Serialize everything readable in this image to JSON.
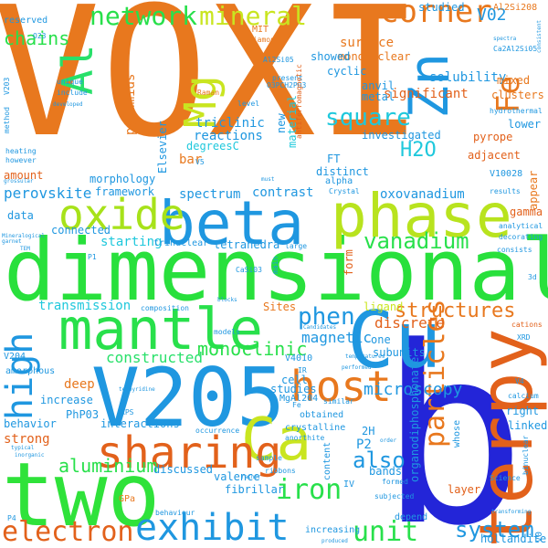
{
  "words": [
    {
      "text": "VOXI",
      "color": "#e8781e",
      "orientation": "horizontal"
    },
    {
      "text": "dimensional",
      "color": "#28e03c",
      "orientation": "horizontal"
    },
    {
      "text": "b",
      "color": "#2325d8",
      "orientation": "horizontal"
    },
    {
      "text": "terpy",
      "color": "#e2611b",
      "orientation": "vertical"
    },
    {
      "text": "V205",
      "color": "#1f97e0",
      "orientation": "horizontal"
    },
    {
      "text": "two",
      "color": "#2fe23a",
      "orientation": "horizontal"
    },
    {
      "text": "Cu",
      "color": "#1f97e0",
      "orientation": "horizontal"
    },
    {
      "text": "beta",
      "color": "#1f97e0",
      "orientation": "horizontal"
    },
    {
      "text": "phase",
      "color": "#b8e31e",
      "orientation": "horizontal"
    },
    {
      "text": "mantle",
      "color": "#28e04b",
      "orientation": "horizontal"
    },
    {
      "text": "Ca",
      "color": "#c9e520",
      "orientation": "horizontal"
    },
    {
      "text": "oxide",
      "color": "#a7e21a",
      "orientation": "horizontal"
    },
    {
      "text": "sharing",
      "color": "#e2611b",
      "orientation": "horizontal"
    },
    {
      "text": "host",
      "color": "#e8781e",
      "orientation": "horizontal"
    },
    {
      "text": "exhibit",
      "color": "#1f97e0",
      "orientation": "horizontal"
    },
    {
      "text": "electron",
      "color": "#e2611b",
      "orientation": "horizontal"
    },
    {
      "text": "high",
      "color": "#1f97e0",
      "orientation": "vertical"
    },
    {
      "text": "Mg",
      "color": "#c9e520",
      "orientation": "vertical"
    },
    {
      "text": "Al",
      "color": "#28e06a",
      "orientation": "vertical"
    },
    {
      "text": "Zn",
      "color": "#1f97e0",
      "orientation": "vertical"
    },
    {
      "text": "network",
      "color": "#28e04b",
      "orientation": "horizontal"
    },
    {
      "text": "mineral",
      "color": "#c9e520",
      "orientation": "horizontal"
    },
    {
      "text": "corner",
      "color": "#e8781e",
      "orientation": "horizontal"
    },
    {
      "text": "square",
      "color": "#1fc8dc",
      "orientation": "horizontal"
    },
    {
      "text": "H2O",
      "color": "#1fc8dc",
      "orientation": "horizontal"
    },
    {
      "text": "vanadium",
      "color": "#28e04b",
      "orientation": "horizontal"
    },
    {
      "text": "structures",
      "color": "#e8781e",
      "orientation": "horizontal"
    },
    {
      "text": "particles",
      "color": "#e8781e",
      "orientation": "vertical"
    },
    {
      "text": "system",
      "color": "#1f97e0",
      "orientation": "horizontal"
    },
    {
      "text": "unit",
      "color": "#28e04b",
      "orientation": "horizontal"
    },
    {
      "text": "phen",
      "color": "#1f97e0",
      "orientation": "horizontal"
    },
    {
      "text": "iron",
      "color": "#28e04b",
      "orientation": "horizontal"
    },
    {
      "text": "Fe",
      "color": "#e8781e",
      "orientation": "vertical"
    },
    {
      "text": "aluminium",
      "color": "#28e04b",
      "orientation": "horizontal"
    },
    {
      "text": "monoclinic",
      "color": "#28e04b",
      "orientation": "horizontal"
    },
    {
      "text": "constructed",
      "color": "#28e06a",
      "orientation": "horizontal"
    },
    {
      "text": "transmission",
      "color": "#1fc8dc",
      "orientation": "horizontal"
    },
    {
      "text": "magnetic",
      "color": "#1f97e0",
      "orientation": "horizontal"
    },
    {
      "text": "microscopy",
      "color": "#1f97e0",
      "orientation": "horizontal"
    },
    {
      "text": "also",
      "color": "#1f97e0",
      "orientation": "horizontal"
    },
    {
      "text": "perovskite",
      "color": "#1f97e0",
      "orientation": "horizontal"
    },
    {
      "text": "V02",
      "color": "#1f97e0",
      "orientation": "horizontal"
    },
    {
      "text": "chains",
      "color": "#28e04b",
      "orientation": "horizontal"
    },
    {
      "text": "surface",
      "color": "#e8781e",
      "orientation": "horizontal"
    },
    {
      "text": "mononuclear",
      "color": "#e8781e",
      "orientation": "horizontal"
    },
    {
      "text": "solubility",
      "color": "#1f97e0",
      "orientation": "horizontal"
    },
    {
      "text": "investigated",
      "color": "#1f97e0",
      "orientation": "horizontal"
    },
    {
      "text": "significant",
      "color": "#e2611b",
      "orientation": "horizontal"
    },
    {
      "text": "pyramids",
      "color": "#e8781e",
      "orientation": "vertical"
    },
    {
      "text": "reactions",
      "color": "#1f97e0",
      "orientation": "horizontal"
    },
    {
      "text": "triclinic",
      "color": "#1f97e0",
      "orientation": "horizontal"
    },
    {
      "text": "degreesC",
      "color": "#1fc8dc",
      "orientation": "horizontal"
    },
    {
      "text": "morphology",
      "color": "#1f97e0",
      "orientation": "horizontal"
    },
    {
      "text": "framework",
      "color": "#1f97e0",
      "orientation": "horizontal"
    },
    {
      "text": "spectrum",
      "color": "#1f97e0",
      "orientation": "horizontal"
    },
    {
      "text": "contrast",
      "color": "#1f97e0",
      "orientation": "horizontal"
    },
    {
      "text": "oxovanadium",
      "color": "#1f97e0",
      "orientation": "horizontal"
    },
    {
      "text": "starting",
      "color": "#1fc8dc",
      "orientation": "horizontal"
    },
    {
      "text": "tetrahedra",
      "color": "#1f97e0",
      "orientation": "horizontal"
    },
    {
      "text": "trinuclear",
      "color": "#1f97e0",
      "orientation": "horizontal"
    },
    {
      "text": "distinct",
      "color": "#1f97e0",
      "orientation": "horizontal"
    },
    {
      "text": "alpha",
      "color": "#1f97e0",
      "orientation": "horizontal"
    },
    {
      "text": "pyrope",
      "color": "#e2611b",
      "orientation": "horizontal"
    },
    {
      "text": "adjacent",
      "color": "#e2611b",
      "orientation": "horizontal"
    },
    {
      "text": "lower",
      "color": "#1f97e0",
      "orientation": "horizontal"
    },
    {
      "text": "clusters",
      "color": "#e8781e",
      "orientation": "horizontal"
    },
    {
      "text": "mixed",
      "color": "#e8781e",
      "orientation": "horizontal"
    },
    {
      "text": "gamma",
      "color": "#e2611b",
      "orientation": "horizontal"
    },
    {
      "text": "appear",
      "color": "#e8781e",
      "orientation": "vertical"
    },
    {
      "text": "cyclic",
      "color": "#1f97e0",
      "orientation": "horizontal"
    },
    {
      "text": "showed",
      "color": "#1f97e0",
      "orientation": "horizontal"
    },
    {
      "text": "amount",
      "color": "#e2611b",
      "orientation": "horizontal"
    },
    {
      "text": "data",
      "color": "#1f97e0",
      "orientation": "horizontal"
    },
    {
      "text": "connected",
      "color": "#1f97e0",
      "orientation": "horizontal"
    },
    {
      "text": "Elsevier",
      "color": "#1f97e0",
      "orientation": "vertical"
    },
    {
      "text": "bar",
      "color": "#e8781e",
      "orientation": "horizontal"
    },
    {
      "text": "FT",
      "color": "#1f97e0",
      "orientation": "horizontal"
    },
    {
      "text": "new",
      "color": "#1f97e0",
      "orientation": "vertical"
    },
    {
      "text": "material",
      "color": "#1fc8dc",
      "orientation": "vertical"
    },
    {
      "text": "metal",
      "color": "#1f97e0",
      "orientation": "horizontal"
    },
    {
      "text": "anvil",
      "color": "#1f97e0",
      "orientation": "horizontal"
    },
    {
      "text": "V10028",
      "color": "#1f97e0",
      "orientation": "horizontal"
    },
    {
      "text": "Al2Si208",
      "color": "#e8781e",
      "orientation": "horizontal"
    },
    {
      "text": "Ca2Al2Si05",
      "color": "#1f97e0",
      "orientation": "horizontal"
    },
    {
      "text": "ligand",
      "color": "#c9e520",
      "orientation": "horizontal"
    },
    {
      "text": "discrete",
      "color": "#e2611b",
      "orientation": "horizontal"
    },
    {
      "text": "form",
      "color": "#e2611b",
      "orientation": "vertical"
    },
    {
      "text": "Sites",
      "color": "#e8781e",
      "orientation": "horizontal"
    },
    {
      "text": "V4010",
      "color": "#1f97e0",
      "orientation": "horizontal"
    },
    {
      "text": "one",
      "color": "#1f97e0",
      "orientation": "horizontal"
    },
    {
      "text": "subunits",
      "color": "#1f97e0",
      "orientation": "horizontal"
    },
    {
      "text": "organodiphosphonate",
      "color": "#1f97e0",
      "orientation": "vertical"
    },
    {
      "text": "V204",
      "color": "#1f97e0",
      "orientation": "horizontal"
    },
    {
      "text": "amorphous",
      "color": "#1f97e0",
      "orientation": "horizontal"
    },
    {
      "text": "deep",
      "color": "#e8781e",
      "orientation": "horizontal"
    },
    {
      "text": "increase",
      "color": "#1f97e0",
      "orientation": "horizontal"
    },
    {
      "text": "behavior",
      "color": "#1f97e0",
      "orientation": "horizontal"
    },
    {
      "text": "PhP03",
      "color": "#1f97e0",
      "orientation": "horizontal"
    },
    {
      "text": "interactions",
      "color": "#1f97e0",
      "orientation": "horizontal"
    },
    {
      "text": "strong",
      "color": "#e2611b",
      "orientation": "horizontal"
    },
    {
      "text": "cell",
      "color": "#1f97e0",
      "orientation": "horizontal"
    },
    {
      "text": "studies",
      "color": "#1f97e0",
      "orientation": "horizontal"
    },
    {
      "text": "MgAl204",
      "color": "#1f97e0",
      "orientation": "horizontal"
    },
    {
      "text": "obtained",
      "color": "#1f97e0",
      "orientation": "horizontal"
    },
    {
      "text": "crystalline",
      "color": "#1f97e0",
      "orientation": "horizontal"
    },
    {
      "text": "2H",
      "color": "#1f97e0",
      "orientation": "horizontal"
    },
    {
      "text": "P2",
      "color": "#1f97e0",
      "orientation": "horizontal"
    },
    {
      "text": "whose",
      "color": "#1f97e0",
      "orientation": "vertical"
    },
    {
      "text": "right",
      "color": "#1f97e0",
      "orientation": "horizontal"
    },
    {
      "text": "linked",
      "color": "#1f97e0",
      "orientation": "horizontal"
    },
    {
      "text": "bands",
      "color": "#1f97e0",
      "orientation": "horizontal"
    },
    {
      "text": "layer",
      "color": "#e2611b",
      "orientation": "horizontal"
    },
    {
      "text": "discussed",
      "color": "#1f97e0",
      "orientation": "horizontal"
    },
    {
      "text": "valence",
      "color": "#1f97e0",
      "orientation": "horizontal"
    },
    {
      "text": "fibrillar",
      "color": "#1f97e0",
      "orientation": "horizontal"
    },
    {
      "text": "content",
      "color": "#1f97e0",
      "orientation": "vertical"
    },
    {
      "text": "increasing",
      "color": "#1f97e0",
      "orientation": "horizontal"
    },
    {
      "text": "depend",
      "color": "#1f97e0",
      "orientation": "horizontal"
    },
    {
      "text": "hollandite",
      "color": "#1f97e0",
      "orientation": "horizontal"
    },
    {
      "text": "reserved",
      "color": "#1f97e0",
      "orientation": "horizontal"
    },
    {
      "text": "studied",
      "color": "#1f97e0",
      "orientation": "horizontal"
    },
    {
      "text": "MIT",
      "color": "#e8781e",
      "orientation": "horizontal"
    },
    {
      "text": "diamond",
      "color": "#e8781e",
      "orientation": "horizontal"
    },
    {
      "text": "present",
      "color": "#1f97e0",
      "orientation": "horizontal"
    },
    {
      "text": "Raman",
      "color": "#e8781e",
      "orientation": "horizontal"
    },
    {
      "text": "Al2Si05",
      "color": "#1f97e0",
      "orientation": "horizontal"
    },
    {
      "text": "hydrothermal",
      "color": "#1f97e0",
      "orientation": "horizontal"
    },
    {
      "text": "results",
      "color": "#1f97e0",
      "orientation": "horizontal"
    },
    {
      "text": "analytical",
      "color": "#1f97e0",
      "orientation": "horizontal"
    },
    {
      "text": "decorating",
      "color": "#1f97e0",
      "orientation": "horizontal"
    },
    {
      "text": "CaSi03",
      "color": "#1f97e0",
      "orientation": "horizontal"
    },
    {
      "text": "composition",
      "color": "#1f97e0",
      "orientation": "horizontal"
    },
    {
      "text": "cations",
      "color": "#e2611b",
      "orientation": "horizontal"
    },
    {
      "text": "XRD",
      "color": "#1f97e0",
      "orientation": "horizontal"
    },
    {
      "text": "calcium",
      "color": "#1f97e0",
      "orientation": "horizontal"
    },
    {
      "text": "Science",
      "color": "#1f97e0",
      "orientation": "horizontal"
    },
    {
      "text": "binuclear",
      "color": "#1f97e0",
      "orientation": "vertical"
    },
    {
      "text": "sample",
      "color": "#1f97e0",
      "orientation": "horizontal"
    },
    {
      "text": "ribbons",
      "color": "#1f97e0",
      "orientation": "horizontal"
    },
    {
      "text": "formed",
      "color": "#1f97e0",
      "orientation": "horizontal"
    },
    {
      "text": "subjected",
      "color": "#1f97e0",
      "orientation": "horizontal"
    },
    {
      "text": "GPa",
      "color": "#e8781e",
      "orientation": "horizontal"
    },
    {
      "text": "P4",
      "color": "#1f97e0",
      "orientation": "horizontal"
    },
    {
      "text": "behaviour",
      "color": "#1f97e0",
      "orientation": "horizontal"
    },
    {
      "text": "models",
      "color": "#1f97e0",
      "orientation": "horizontal"
    },
    {
      "text": "V5",
      "color": "#1f97e0",
      "orientation": "horizontal"
    },
    {
      "text": "V4",
      "color": "#1f97e0",
      "orientation": "horizontal"
    },
    {
      "text": "IV",
      "color": "#1f97e0",
      "orientation": "horizontal"
    },
    {
      "text": "IR",
      "color": "#1f97e0",
      "orientation": "horizontal"
    },
    {
      "text": "P1",
      "color": "#1f97e0",
      "orientation": "horizontal"
    },
    {
      "text": "3d",
      "color": "#1f97e0",
      "orientation": "horizontal"
    },
    {
      "text": "unique",
      "color": "#1f97e0",
      "orientation": "horizontal"
    },
    {
      "text": "include",
      "color": "#1f97e0",
      "orientation": "horizontal"
    },
    {
      "text": "heating",
      "color": "#1f97e0",
      "orientation": "horizontal"
    },
    {
      "text": "however",
      "color": "#1f97e0",
      "orientation": "horizontal"
    },
    {
      "text": "method",
      "color": "#1f97e0",
      "orientation": "vertical"
    },
    {
      "text": "V203",
      "color": "#1f97e0",
      "orientation": "vertical"
    },
    {
      "text": "O23",
      "color": "#1f97e0",
      "orientation": "horizontal"
    },
    {
      "text": "Crystal",
      "color": "#1f97e0",
      "orientation": "horizontal"
    },
    {
      "text": "occurrence",
      "color": "#1f97e0",
      "orientation": "horizontal"
    },
    {
      "text": "consists",
      "color": "#1f97e0",
      "orientation": "horizontal"
    },
    {
      "text": "large",
      "color": "#1f97e0",
      "orientation": "horizontal"
    },
    {
      "text": "main",
      "color": "#1f97e0",
      "orientation": "vertical"
    },
    {
      "text": "level",
      "color": "#1f97e0",
      "orientation": "horizontal"
    },
    {
      "text": "O3PCH2PO3",
      "color": "#1f97e0",
      "orientation": "horizontal"
    },
    {
      "text": "antiferromagnetic",
      "color": "#e2611b",
      "orientation": "vertical"
    },
    {
      "text": "Candidates",
      "color": "#1f97e0",
      "orientation": "horizontal"
    },
    {
      "text": "anorthite",
      "color": "#1f97e0",
      "orientation": "horizontal"
    },
    {
      "text": "temperatures",
      "color": "#1f97e0",
      "orientation": "horizontal"
    },
    {
      "text": "performed",
      "color": "#1f97e0",
      "orientation": "horizontal"
    },
    {
      "text": "similar",
      "color": "#1f97e0",
      "orientation": "horizontal"
    },
    {
      "text": "typical",
      "color": "#1f97e0",
      "orientation": "horizontal"
    },
    {
      "text": "inorganic",
      "color": "#1f97e0",
      "orientation": "horizontal"
    },
    {
      "text": "developed",
      "color": "#1f97e0",
      "orientation": "horizontal"
    },
    {
      "text": "grossular",
      "color": "#1f97e0",
      "orientation": "horizontal"
    },
    {
      "text": "Mineralogical",
      "color": "#1f97e0",
      "orientation": "horizontal"
    },
    {
      "text": "garnet",
      "color": "#1f97e0",
      "orientation": "horizontal"
    },
    {
      "text": "TEM",
      "color": "#1f97e0",
      "orientation": "horizontal"
    },
    {
      "text": "spectra",
      "color": "#1f97e0",
      "orientation": "horizontal"
    },
    {
      "text": "consistent",
      "color": "#1f97e0",
      "orientation": "vertical"
    },
    {
      "text": "produced",
      "color": "#1f97e0",
      "orientation": "horizontal"
    },
    {
      "text": "transforming",
      "color": "#1f97e0",
      "orientation": "horizontal"
    },
    {
      "text": "blocks",
      "color": "#1f97e0",
      "orientation": "horizontal"
    },
    {
      "text": "terpyridine",
      "color": "#1f97e0",
      "orientation": "horizontal"
    },
    {
      "text": "XPS",
      "color": "#1f97e0",
      "orientation": "horizontal"
    },
    {
      "text": "Fe",
      "color": "#1f97e0",
      "orientation": "horizontal"
    },
    {
      "text": "rather",
      "color": "#1f97e0",
      "orientation": "horizontal"
    },
    {
      "text": "order",
      "color": "#1f97e0",
      "orientation": "horizontal"
    },
    {
      "text": "must",
      "color": "#1f97e0",
      "orientation": "horizontal"
    },
    {
      "text": "V0",
      "color": "#1f97e0",
      "orientation": "vertical"
    }
  ]
}
